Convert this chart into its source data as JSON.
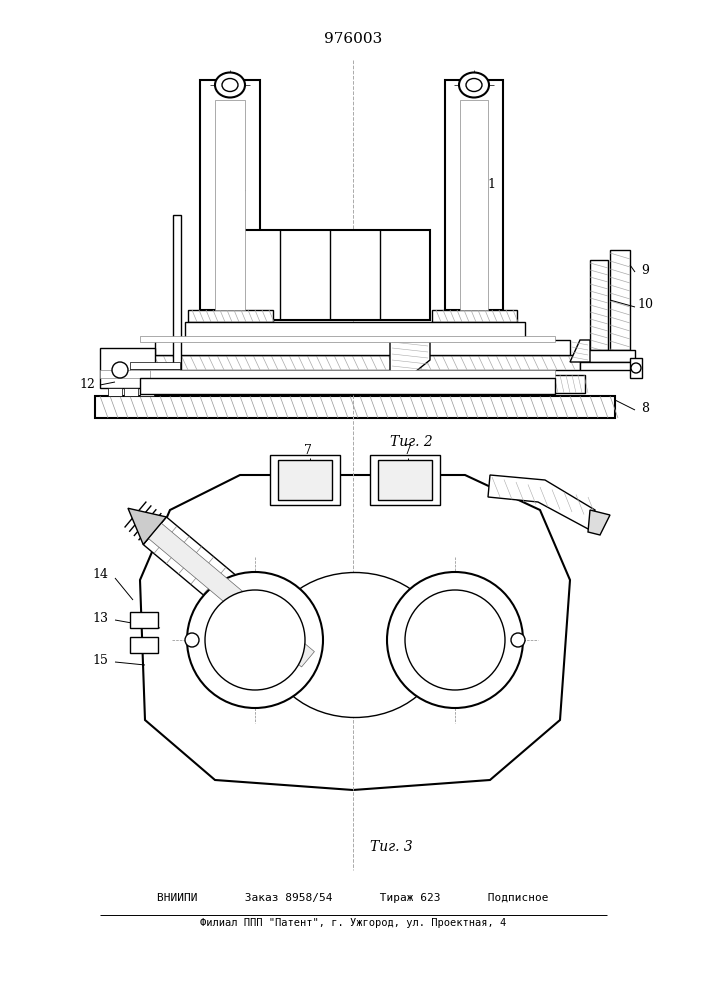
{
  "title": "976003",
  "fig2_label": "Τиг. 2",
  "fig3_label": "Τиг. 3",
  "footer_line1": "ВНИИПИ       Заказ 8958/54       Тираж 623       Подписное",
  "footer_line2": "Филиал ППП \"Патент\", г. Ужгород, ул. Проектная, 4",
  "bg_color": "#ffffff",
  "line_color": "#000000"
}
